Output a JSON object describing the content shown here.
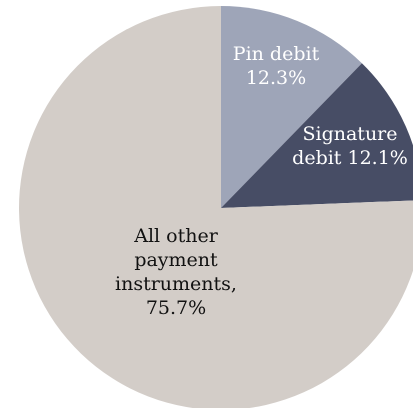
{
  "chart_data": {
    "type": "pie",
    "title": "",
    "slices": [
      {
        "name": "Pin debit",
        "value": 12.3,
        "color": "#9ea5b8",
        "label_lines": [
          "Pin debit",
          "12.3%"
        ],
        "label_color": "#ffffff"
      },
      {
        "name": "Signature debit",
        "value": 12.1,
        "color": "#474d65",
        "label_lines": [
          "Signature",
          "debit  12.1%"
        ],
        "label_color": "#ffffff"
      },
      {
        "name": "All other payment instruments",
        "value": 75.7,
        "color": "#d3cdc8",
        "label_lines": [
          "All other",
          "payment",
          "instruments,",
          "75.7%"
        ],
        "label_color": "#111111"
      }
    ],
    "start_angle_deg": 0,
    "direction": "clockwise",
    "legend": "none"
  }
}
